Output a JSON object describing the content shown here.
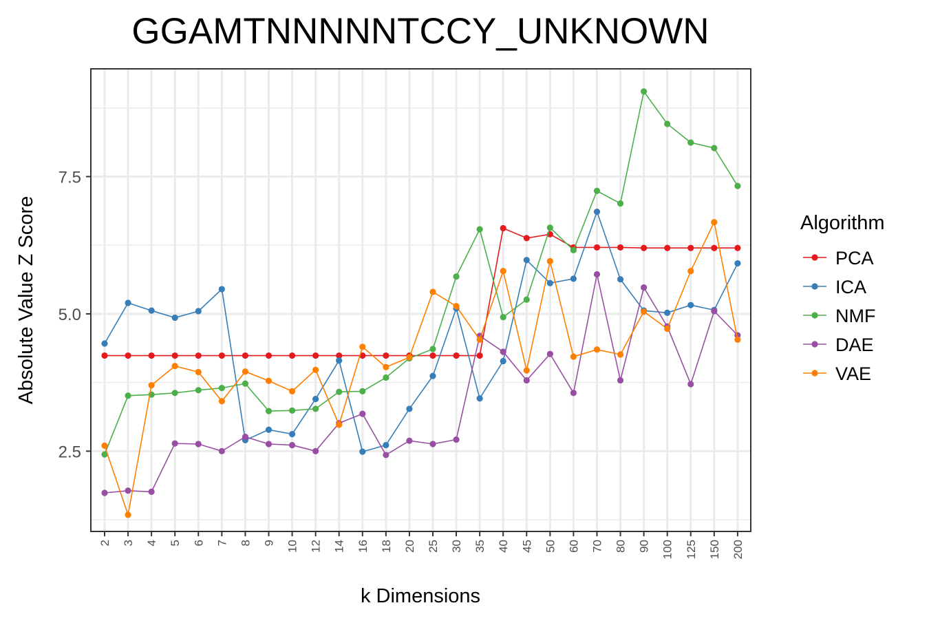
{
  "chart_data": {
    "type": "line",
    "title": "GGAMTNNNNNTCCY_UNKNOWN",
    "xlabel": "k Dimensions",
    "ylabel": "Absolute Value Z Score",
    "categories": [
      "2",
      "3",
      "4",
      "5",
      "6",
      "7",
      "8",
      "9",
      "10",
      "12",
      "14",
      "16",
      "18",
      "20",
      "25",
      "30",
      "35",
      "40",
      "45",
      "50",
      "60",
      "70",
      "80",
      "90",
      "100",
      "125",
      "150",
      "200"
    ],
    "ylim": [
      1.05,
      9.45
    ],
    "yticks": [
      2.5,
      5.0,
      7.5
    ],
    "ytick_labels": [
      "2.5",
      "5.0",
      "7.5"
    ],
    "grid": true,
    "legend_title": "Algorithm",
    "legend_position": "right",
    "series": [
      {
        "name": "PCA",
        "color": "#E41A1C",
        "values": [
          4.24,
          4.24,
          4.24,
          4.24,
          4.24,
          4.24,
          4.24,
          4.24,
          4.24,
          4.24,
          4.24,
          4.24,
          4.24,
          4.24,
          4.24,
          4.24,
          4.24,
          6.56,
          6.38,
          6.45,
          6.21,
          6.21,
          6.21,
          6.2,
          6.2,
          6.2,
          6.2,
          6.2
        ]
      },
      {
        "name": "ICA",
        "color": "#377EB8",
        "values": [
          4.46,
          5.2,
          5.06,
          4.93,
          5.05,
          5.45,
          2.7,
          2.89,
          2.81,
          3.45,
          4.15,
          2.49,
          2.61,
          3.27,
          3.87,
          5.1,
          3.46,
          4.14,
          5.98,
          5.56,
          5.64,
          6.86,
          5.63,
          5.06,
          5.02,
          5.16,
          5.07,
          5.92
        ]
      },
      {
        "name": "NMF",
        "color": "#4DAF4A",
        "values": [
          2.44,
          3.51,
          3.53,
          3.56,
          3.61,
          3.65,
          3.73,
          3.23,
          3.24,
          3.27,
          3.58,
          3.59,
          3.84,
          4.19,
          4.36,
          5.68,
          6.54,
          4.94,
          5.26,
          6.57,
          6.16,
          7.24,
          7.01,
          9.05,
          8.46,
          8.12,
          8.02,
          7.33
        ]
      },
      {
        "name": "DAE",
        "color": "#984EA3",
        "values": [
          1.74,
          1.78,
          1.76,
          2.64,
          2.63,
          2.5,
          2.76,
          2.63,
          2.61,
          2.5,
          3.01,
          3.18,
          2.43,
          2.69,
          2.63,
          2.71,
          4.6,
          4.31,
          3.79,
          4.27,
          3.56,
          5.72,
          3.79,
          5.48,
          4.77,
          3.72,
          5.05,
          4.61
        ]
      },
      {
        "name": "VAE",
        "color": "#FF7F00",
        "values": [
          2.6,
          1.34,
          3.7,
          4.05,
          3.94,
          3.41,
          3.95,
          3.78,
          3.59,
          3.98,
          2.98,
          4.4,
          4.03,
          4.21,
          5.4,
          5.14,
          4.53,
          5.78,
          3.97,
          5.96,
          4.22,
          4.35,
          4.26,
          5.04,
          4.73,
          5.78,
          6.67,
          4.53
        ]
      }
    ]
  }
}
